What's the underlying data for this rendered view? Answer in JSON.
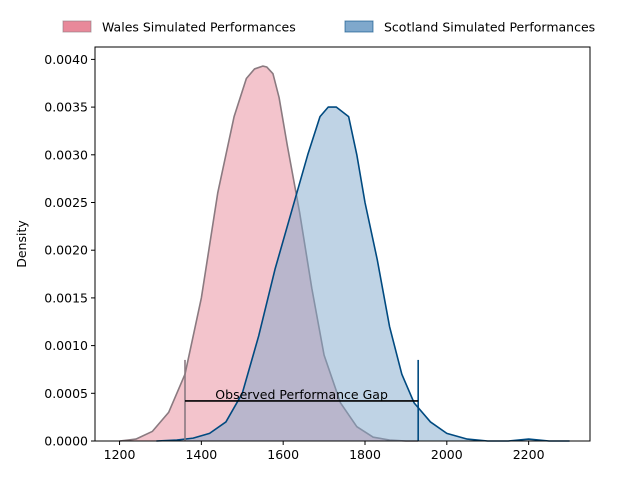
{
  "chart_data": {
    "type": "area",
    "title": "",
    "xlabel": "",
    "ylabel": "Density",
    "xlim": [
      1140,
      2350
    ],
    "ylim": [
      0,
      0.00413
    ],
    "xticks": [
      1200,
      1400,
      1600,
      1800,
      2000,
      2200
    ],
    "yticks": [
      0.0,
      0.0005,
      0.001,
      0.0015,
      0.002,
      0.0025,
      0.003,
      0.0035,
      0.004
    ],
    "ytick_labels": [
      "0.0000",
      "0.0005",
      "0.0010",
      "0.0015",
      "0.0020",
      "0.0025",
      "0.0030",
      "0.0035",
      "0.0040"
    ],
    "grid": false,
    "legend_position": "top, above plot",
    "series": [
      {
        "name": "Wales Simulated Performances",
        "fill_color": "#e8899a",
        "line_color": "#8a7a80",
        "x": [
          1200,
          1240,
          1280,
          1320,
          1360,
          1400,
          1440,
          1480,
          1510,
          1530,
          1550,
          1560,
          1575,
          1590,
          1610,
          1640,
          1670,
          1700,
          1740,
          1780,
          1820,
          1860,
          1900,
          1930
        ],
        "y": [
          0.0,
          2e-05,
          0.0001,
          0.0003,
          0.0007,
          0.0015,
          0.0026,
          0.0034,
          0.0038,
          0.0039,
          0.00393,
          0.00392,
          0.00385,
          0.0036,
          0.0031,
          0.0024,
          0.0016,
          0.0009,
          0.0004,
          0.00015,
          4e-05,
          1e-05,
          0.0,
          0.0
        ]
      },
      {
        "name": "Scotland Simulated Performances",
        "fill_color": "#7fa8cc",
        "line_color": "#004a80",
        "x": [
          1290,
          1340,
          1380,
          1420,
          1460,
          1500,
          1540,
          1580,
          1620,
          1660,
          1690,
          1710,
          1730,
          1760,
          1780,
          1800,
          1830,
          1860,
          1890,
          1920,
          1960,
          2000,
          2050,
          2100,
          2150,
          2200,
          2250,
          2300
        ],
        "y": [
          0.0,
          1e-05,
          3e-05,
          8e-05,
          0.0002,
          0.0005,
          0.0011,
          0.0018,
          0.0024,
          0.003,
          0.0034,
          0.0035,
          0.0035,
          0.0034,
          0.003,
          0.0025,
          0.0019,
          0.0012,
          0.0007,
          0.0004,
          0.0002,
          8e-05,
          2e-05,
          0.0,
          0.0,
          2e-05,
          0.0,
          0.0
        ]
      }
    ],
    "annotations": [
      {
        "text": "Observed Performance Gap",
        "x_start": 1360,
        "x_end": 1930,
        "y": 0.00042,
        "marker_top": 0.00085,
        "start_marker_color": "#8a7a80",
        "end_marker_color": "#004a80"
      }
    ]
  }
}
